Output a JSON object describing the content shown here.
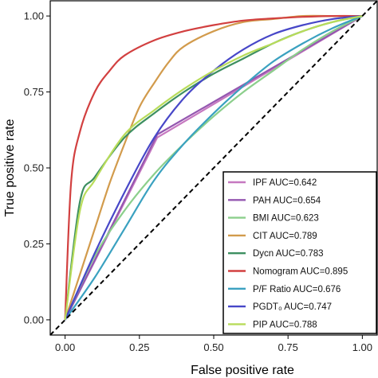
{
  "chart_data": {
    "type": "line",
    "title": "",
    "xlabel": "False positive rate",
    "ylabel": "True positive rate",
    "xlim": [
      -0.05,
      1.05
    ],
    "ylim": [
      -0.05,
      1.05
    ],
    "x_ticks": [
      0.0,
      0.25,
      0.5,
      0.75,
      1.0
    ],
    "x_tick_labels": [
      "0.00",
      "0.25",
      "0.50",
      "0.75",
      "1.00"
    ],
    "y_ticks": [
      0.0,
      0.25,
      0.5,
      0.75,
      1.0
    ],
    "y_tick_labels": [
      "0.00",
      "0.25",
      "0.50",
      "0.75",
      "1.00"
    ],
    "grid": false,
    "legend_position": "bottom-right",
    "reference_line": {
      "x": [
        0,
        1
      ],
      "y": [
        0,
        1
      ],
      "style": "dashed",
      "color": "#000000"
    },
    "series": [
      {
        "name": "IPF AUC=0.642",
        "color": "#c678c0",
        "x": [
          0,
          0.31,
          1.0
        ],
        "y": [
          0,
          0.6,
          1.0
        ]
      },
      {
        "name": "PAH AUC=0.654",
        "color": "#9457b0",
        "x": [
          0,
          0.31,
          1.0
        ],
        "y": [
          0,
          0.61,
          1.0
        ]
      },
      {
        "name": "BMI AUC=0.623",
        "color": "#8ccf8c",
        "x": [
          0,
          0.1,
          0.2,
          0.3,
          0.4,
          0.5,
          0.6,
          0.7,
          0.8,
          0.9,
          1.0
        ],
        "y": [
          0,
          0.21,
          0.36,
          0.48,
          0.58,
          0.67,
          0.75,
          0.82,
          0.89,
          0.95,
          1.0
        ]
      },
      {
        "name": "CIT AUC=0.789",
        "color": "#d29b4c",
        "x": [
          0,
          0.05,
          0.1,
          0.15,
          0.2,
          0.25,
          0.3,
          0.35,
          0.4,
          0.5,
          0.6,
          0.7,
          0.8,
          0.9,
          1.0
        ],
        "y": [
          0,
          0.15,
          0.3,
          0.45,
          0.58,
          0.7,
          0.78,
          0.85,
          0.9,
          0.95,
          0.98,
          0.99,
          1.0,
          1.0,
          1.0
        ]
      },
      {
        "name": "Dycn AUC=0.783",
        "color": "#3d8f61",
        "x": [
          0,
          0.05,
          0.1,
          0.2,
          0.3,
          0.4,
          0.5,
          0.6,
          0.7,
          0.8,
          0.9,
          1.0
        ],
        "y": [
          0,
          0.39,
          0.47,
          0.6,
          0.68,
          0.75,
          0.81,
          0.86,
          0.91,
          0.95,
          0.98,
          1.0
        ]
      },
      {
        "name": "Nomogram AUC=0.895",
        "color": "#d24040",
        "x": [
          0,
          0.02,
          0.05,
          0.1,
          0.15,
          0.2,
          0.3,
          0.4,
          0.5,
          0.6,
          0.7,
          0.8,
          0.9,
          1.0
        ],
        "y": [
          0,
          0.45,
          0.62,
          0.75,
          0.82,
          0.87,
          0.92,
          0.95,
          0.97,
          0.985,
          0.992,
          0.997,
          1.0,
          1.0
        ]
      },
      {
        "name": "P/F Ratio AUC=0.676",
        "color": "#3aa1c0",
        "x": [
          0,
          0.1,
          0.2,
          0.3,
          0.4,
          0.5,
          0.6,
          0.7,
          0.8,
          0.9,
          1.0
        ],
        "y": [
          0,
          0.14,
          0.3,
          0.46,
          0.58,
          0.68,
          0.77,
          0.85,
          0.91,
          0.96,
          1.0
        ]
      },
      {
        "name": "PGDT₀ AUC=0.747",
        "color": "#4747c8",
        "x": [
          0,
          0.1,
          0.2,
          0.3,
          0.4,
          0.5,
          0.6,
          0.7,
          0.8,
          0.9,
          1.0
        ],
        "y": [
          0,
          0.22,
          0.42,
          0.6,
          0.73,
          0.82,
          0.89,
          0.94,
          0.97,
          0.99,
          1.0
        ]
      },
      {
        "name": "PIP AUC=0.788",
        "color": "#b8dc5a",
        "x": [
          0,
          0.05,
          0.1,
          0.2,
          0.3,
          0.4,
          0.5,
          0.6,
          0.7,
          0.8,
          0.9,
          1.0
        ],
        "y": [
          0,
          0.36,
          0.46,
          0.61,
          0.69,
          0.76,
          0.82,
          0.87,
          0.91,
          0.95,
          0.98,
          1.0
        ]
      }
    ]
  }
}
